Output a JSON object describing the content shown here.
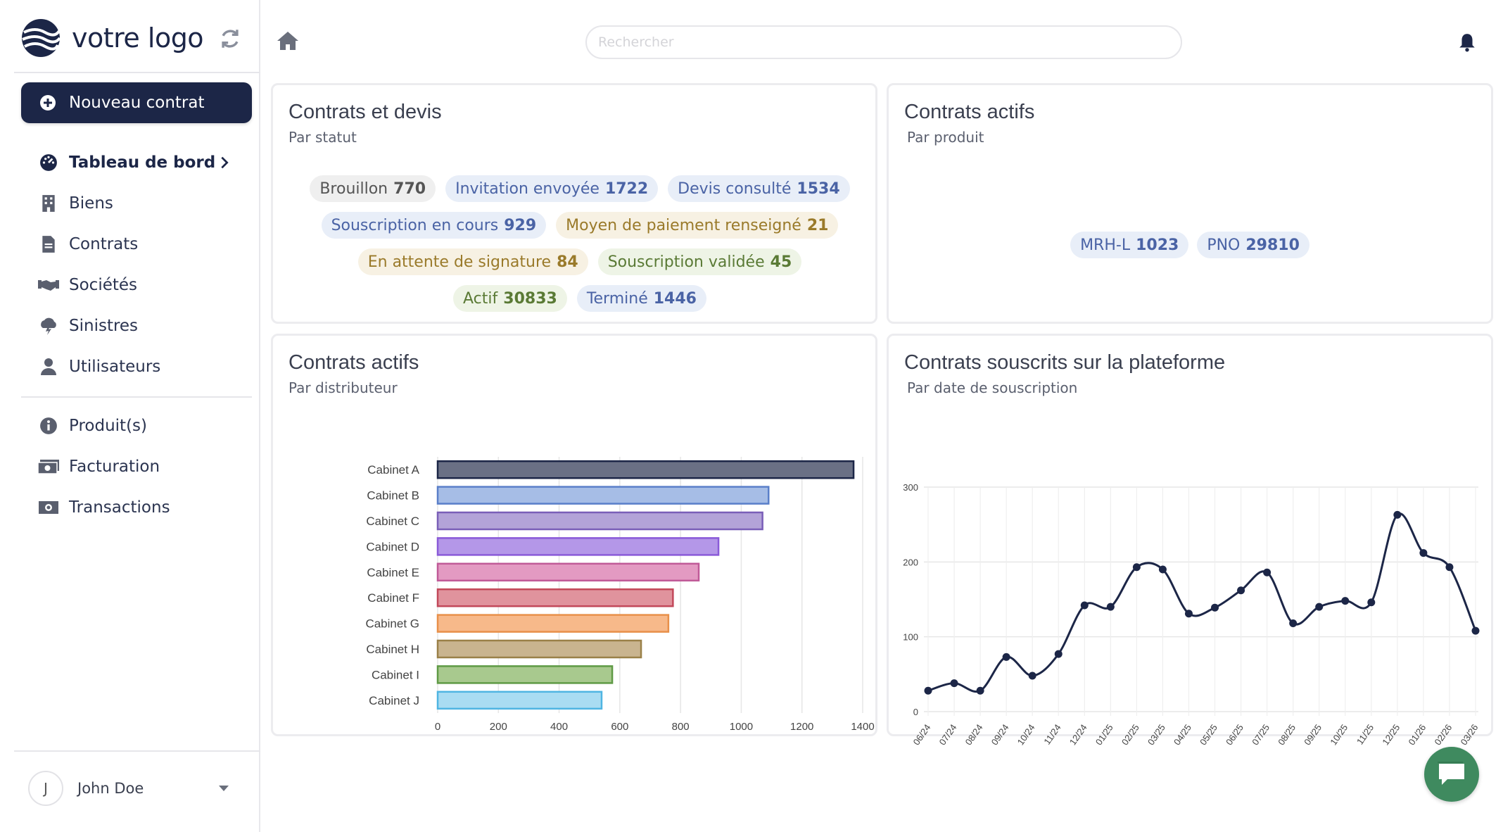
{
  "app": {
    "logo_text": "votre logo",
    "new_contract_label": "Nouveau contrat"
  },
  "sidebar": {
    "items": [
      {
        "label": "Tableau de bord",
        "icon": "dashboard-icon",
        "active": true
      },
      {
        "label": "Biens",
        "icon": "building-icon"
      },
      {
        "label": "Contrats",
        "icon": "file-icon"
      },
      {
        "label": "Sociétés",
        "icon": "handshake-icon"
      },
      {
        "label": "Sinistres",
        "icon": "cloud-lightning-icon"
      },
      {
        "label": "Utilisateurs",
        "icon": "user-icon"
      }
    ],
    "items2": [
      {
        "label": "Produit(s)",
        "icon": "info-icon"
      },
      {
        "label": "Facturation",
        "icon": "money-icon"
      },
      {
        "label": "Transactions",
        "icon": "money-icon"
      }
    ],
    "user": {
      "initial": "J",
      "name": "John Doe"
    }
  },
  "header": {
    "search_placeholder": "Rechercher"
  },
  "cards": {
    "contrats_devis": {
      "title": "Contrats et devis",
      "subtitle": "Par statut",
      "badges": [
        {
          "label": "Brouillon",
          "value": "770",
          "tone": "grey"
        },
        {
          "label": "Invitation envoyée",
          "value": "1722",
          "tone": "blue"
        },
        {
          "label": "Devis consulté",
          "value": "1534",
          "tone": "blue"
        },
        {
          "label": "Souscription en cours",
          "value": "929",
          "tone": "blue"
        },
        {
          "label": "Moyen de paiement renseigné",
          "value": "21",
          "tone": "gold"
        },
        {
          "label": "En attente de signature",
          "value": "84",
          "tone": "gold"
        },
        {
          "label": "Souscription validée",
          "value": "45",
          "tone": "green"
        },
        {
          "label": "Actif",
          "value": "30833",
          "tone": "green"
        },
        {
          "label": "Terminé",
          "value": "1446",
          "tone": "blue"
        }
      ]
    },
    "contrats_actifs_produit": {
      "title": "Contrats actifs",
      "subtitle": "Par produit",
      "badges": [
        {
          "label": "MRH-L",
          "value": "1023",
          "tone": "blue"
        },
        {
          "label": "PNO",
          "value": "29810",
          "tone": "blue"
        }
      ]
    },
    "contrats_actifs_distributeur": {
      "title": "Contrats actifs",
      "subtitle": "Par distributeur"
    },
    "contrats_souscrits": {
      "title": "Contrats souscrits sur la plateforme",
      "subtitle": "Par date de souscription"
    }
  },
  "chart_data": [
    {
      "type": "bar",
      "orientation": "horizontal",
      "categories": [
        "Cabinet A",
        "Cabinet B",
        "Cabinet C",
        "Cabinet D",
        "Cabinet E",
        "Cabinet F",
        "Cabinet G",
        "Cabinet H",
        "Cabinet I",
        "Cabinet J"
      ],
      "values": [
        1370,
        1090,
        1070,
        925,
        860,
        775,
        760,
        670,
        575,
        540
      ],
      "colors": [
        "#6a7085",
        "#a6bde6",
        "#b3a3d8",
        "#b497e8",
        "#e39ac2",
        "#e0939d",
        "#f7b98a",
        "#c9b48f",
        "#a8c98e",
        "#a9dcf2"
      ],
      "stroke_colors": [
        "#1c2647",
        "#5a7fc9",
        "#7a5fb8",
        "#8a5ad8",
        "#c05a98",
        "#c2485a",
        "#e8904a",
        "#9a8048",
        "#5f9a45",
        "#4fb5e2"
      ],
      "xlim": [
        0,
        1400
      ],
      "xticks": [
        0,
        200,
        400,
        600,
        800,
        1000,
        1200,
        1400
      ],
      "grid": true
    },
    {
      "type": "line",
      "x": [
        "06/24",
        "07/24",
        "08/24",
        "09/24",
        "10/24",
        "11/24",
        "12/24",
        "01/25",
        "02/25",
        "03/25",
        "04/25",
        "05/25",
        "06/25",
        "07/25",
        "08/25",
        "09/25",
        "10/25",
        "11/25",
        "12/25",
        "01/26",
        "02/26",
        "03/26"
      ],
      "values": [
        28,
        38,
        28,
        73,
        48,
        77,
        142,
        140,
        193,
        190,
        131,
        139,
        162,
        186,
        118,
        140,
        148,
        146,
        263,
        212,
        193,
        108
      ],
      "ylim": [
        0,
        300
      ],
      "yticks": [
        0,
        100,
        200,
        300
      ],
      "color": "#1c2647",
      "smooth": true,
      "grid": true
    }
  ]
}
